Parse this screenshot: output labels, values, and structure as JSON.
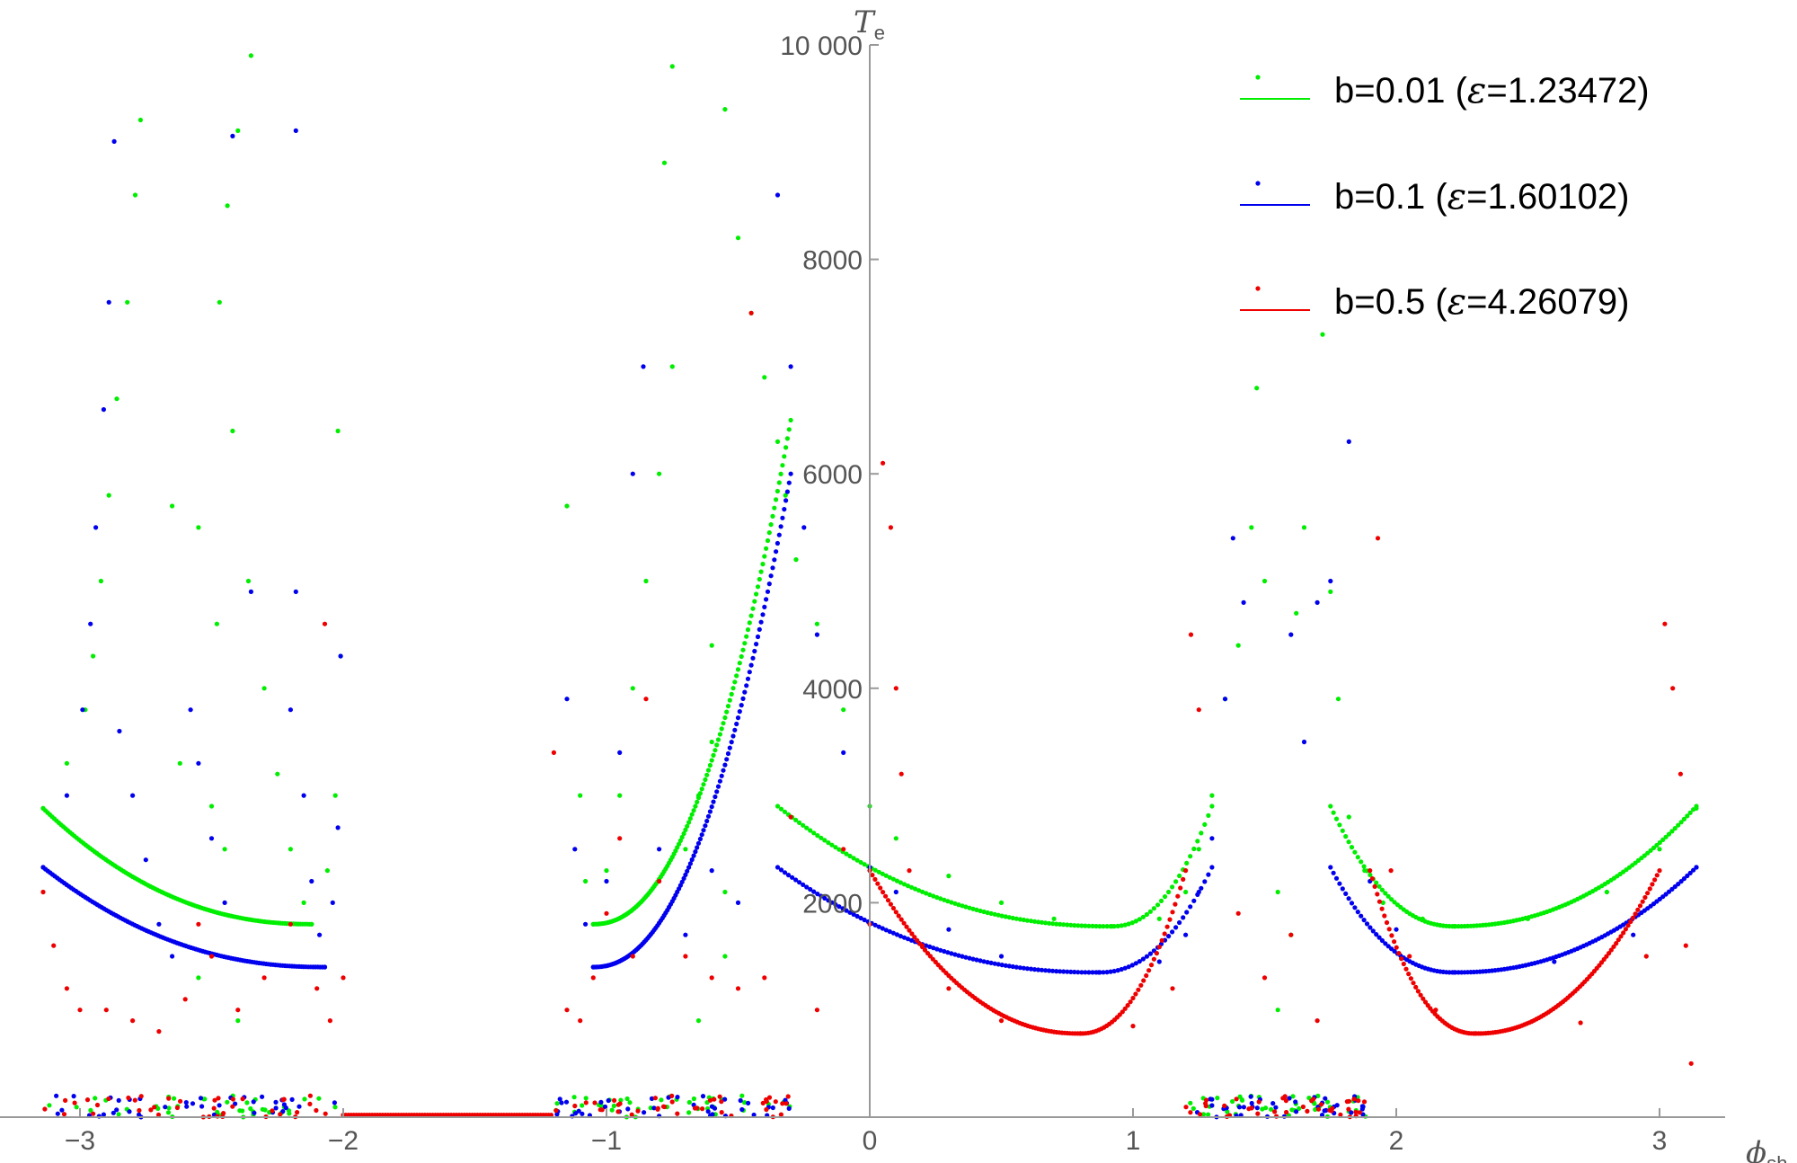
{
  "chart_data": {
    "type": "scatter",
    "xlabel": "ϕ",
    "xlabel_sub": "sh",
    "ylabel": "T",
    "ylabel_sub": "e",
    "xlim": [
      -3.1416,
      3.1416
    ],
    "ylim": [
      0,
      10000
    ],
    "x_ticks": [
      -3,
      -2,
      -1,
      0,
      1,
      2,
      3
    ],
    "x_tick_labels": [
      "−3",
      "−2",
      "−1",
      "0",
      "1",
      "2",
      "3"
    ],
    "y_ticks": [
      2000,
      4000,
      6000,
      8000,
      10000
    ],
    "y_tick_labels": [
      "2000",
      "4000",
      "6000",
      "8000",
      "10 000"
    ],
    "grid": false,
    "legend_position": "top-right",
    "series": [
      {
        "name": "b=0.01",
        "eps_label": "1.23472",
        "color": "#00ee00",
        "regular_segments": [
          {
            "x0": -3.14,
            "x1": -2.12,
            "vertex": -2.12,
            "min": 1800,
            "edge": 2880,
            "left_wall": -3.14,
            "right_wall": -2.12
          },
          {
            "x0": -1.05,
            "x1": -0.3,
            "vertex": -1.05,
            "min": 1800,
            "edge": 6500
          },
          {
            "x0": -0.35,
            "x1": 1.3,
            "vertex": 0.92,
            "min": 1780,
            "edge": 2900
          },
          {
            "x0": 1.75,
            "x1": 3.14,
            "vertex": 2.22,
            "min": 1780,
            "edge": 2900
          }
        ],
        "sample_points": [
          [
            -3.14,
            2880
          ],
          [
            -3.05,
            3300
          ],
          [
            -2.98,
            3800
          ],
          [
            -2.95,
            4300
          ],
          [
            -2.92,
            5000
          ],
          [
            -2.89,
            5800
          ],
          [
            -2.86,
            6700
          ],
          [
            -2.82,
            7600
          ],
          [
            -2.79,
            8600
          ],
          [
            -2.77,
            9300
          ],
          [
            -2.35,
            9900
          ],
          [
            -2.4,
            9200
          ],
          [
            -2.44,
            8500
          ],
          [
            -2.47,
            7600
          ],
          [
            -2.42,
            6400
          ],
          [
            -2.36,
            5000
          ],
          [
            -2.3,
            4000
          ],
          [
            -2.25,
            3200
          ],
          [
            -2.2,
            2500
          ],
          [
            -2.15,
            2000
          ],
          [
            -2.12,
            1800
          ],
          [
            -2.06,
            2300
          ],
          [
            -2.03,
            3000
          ],
          [
            -2.01,
            4300
          ],
          [
            -2.02,
            6400
          ],
          [
            -2.65,
            5700
          ],
          [
            -2.55,
            5500
          ],
          [
            -2.48,
            4600
          ],
          [
            -2.62,
            3300
          ],
          [
            -2.5,
            2900
          ],
          [
            -2.45,
            2500
          ],
          [
            -2.6,
            1600
          ],
          [
            -2.55,
            1300
          ],
          [
            -2.4,
            900
          ],
          [
            -1.15,
            5700
          ],
          [
            -1.1,
            3000
          ],
          [
            -1.08,
            2200
          ],
          [
            -1.05,
            1800
          ],
          [
            -1.0,
            2300
          ],
          [
            -0.95,
            3000
          ],
          [
            -0.9,
            4000
          ],
          [
            -0.85,
            5000
          ],
          [
            -0.8,
            6000
          ],
          [
            -0.75,
            7000
          ],
          [
            -0.78,
            8900
          ],
          [
            -0.75,
            9800
          ],
          [
            -0.55,
            9400
          ],
          [
            -0.5,
            8200
          ],
          [
            -0.45,
            7500
          ],
          [
            -0.4,
            6900
          ],
          [
            -0.35,
            6300
          ],
          [
            -0.32,
            5800
          ],
          [
            -0.28,
            5200
          ],
          [
            -0.2,
            4600
          ],
          [
            -0.1,
            3800
          ],
          [
            0.0,
            2900
          ],
          [
            0.1,
            2600
          ],
          [
            0.3,
            2250
          ],
          [
            0.5,
            2000
          ],
          [
            0.7,
            1850
          ],
          [
            0.92,
            1780
          ],
          [
            1.1,
            1850
          ],
          [
            1.2,
            2100
          ],
          [
            1.25,
            2500
          ],
          [
            1.3,
            3000
          ],
          [
            1.35,
            3900
          ],
          [
            1.4,
            4400
          ],
          [
            1.45,
            5500
          ],
          [
            1.47,
            6800
          ],
          [
            1.5,
            5000
          ],
          [
            -0.6,
            4400
          ],
          [
            -0.6,
            3500
          ],
          [
            -0.65,
            3000
          ],
          [
            -0.7,
            2500
          ],
          [
            -0.55,
            2100
          ],
          [
            -0.55,
            1500
          ],
          [
            -0.65,
            900
          ],
          [
            1.55,
            2100
          ],
          [
            1.6,
            1700
          ],
          [
            1.55,
            1000
          ],
          [
            1.62,
            4700
          ],
          [
            1.65,
            5500
          ],
          [
            1.72,
            7300
          ],
          [
            1.75,
            4900
          ],
          [
            1.78,
            3900
          ],
          [
            1.82,
            2800
          ],
          [
            1.88,
            2300
          ],
          [
            1.95,
            2000
          ],
          [
            2.1,
            1850
          ],
          [
            2.22,
            1780
          ],
          [
            2.5,
            1850
          ],
          [
            2.8,
            2100
          ],
          [
            3.0,
            2500
          ],
          [
            3.14,
            2880
          ]
        ]
      },
      {
        "name": "b=0.1",
        "eps_label": "1.60102",
        "color": "#0000ee",
        "regular_segments": [
          {
            "x0": -3.14,
            "x1": -2.07,
            "vertex": -2.07,
            "min": 1400,
            "edge": 2330
          },
          {
            "x0": -1.05,
            "x1": -0.3,
            "vertex": -1.05,
            "min": 1400,
            "edge": 6000
          },
          {
            "x0": -0.35,
            "x1": 1.3,
            "vertex": 0.87,
            "min": 1350,
            "edge": 2330
          },
          {
            "x0": 1.75,
            "x1": 3.14,
            "vertex": 2.22,
            "min": 1350,
            "edge": 2330
          }
        ],
        "sample_points": [
          [
            -3.14,
            2330
          ],
          [
            -3.05,
            3000
          ],
          [
            -2.99,
            3800
          ],
          [
            -2.96,
            4600
          ],
          [
            -2.94,
            5500
          ],
          [
            -2.91,
            6600
          ],
          [
            -2.89,
            7600
          ],
          [
            -2.87,
            9100
          ],
          [
            -2.42,
            9150
          ],
          [
            -2.18,
            9200
          ],
          [
            -2.18,
            4900
          ],
          [
            -2.2,
            3800
          ],
          [
            -2.15,
            3000
          ],
          [
            -2.12,
            2200
          ],
          [
            -2.09,
            1700
          ],
          [
            -2.07,
            1400
          ],
          [
            -2.04,
            2000
          ],
          [
            -2.02,
            2700
          ],
          [
            -2.01,
            4300
          ],
          [
            -2.85,
            3600
          ],
          [
            -2.8,
            3000
          ],
          [
            -2.75,
            2400
          ],
          [
            -2.7,
            1800
          ],
          [
            -2.65,
            1500
          ],
          [
            -2.58,
            3800
          ],
          [
            -2.55,
            3300
          ],
          [
            -2.5,
            2600
          ],
          [
            -2.45,
            2000
          ],
          [
            -2.35,
            4900
          ],
          [
            -1.15,
            3900
          ],
          [
            -1.12,
            2500
          ],
          [
            -1.08,
            1800
          ],
          [
            -1.05,
            1400
          ],
          [
            -1.0,
            2200
          ],
          [
            -0.95,
            3400
          ],
          [
            -0.9,
            6000
          ],
          [
            -0.86,
            7000
          ],
          [
            -0.8,
            2500
          ],
          [
            -0.7,
            1700
          ],
          [
            -0.6,
            2300
          ],
          [
            -0.5,
            2000
          ],
          [
            -0.35,
            8600
          ],
          [
            -0.3,
            7000
          ],
          [
            -0.25,
            5500
          ],
          [
            -0.2,
            4500
          ],
          [
            -0.1,
            3400
          ],
          [
            0.0,
            2330
          ],
          [
            0.1,
            2100
          ],
          [
            0.3,
            1750
          ],
          [
            0.5,
            1500
          ],
          [
            0.87,
            1350
          ],
          [
            1.1,
            1450
          ],
          [
            1.2,
            1700
          ],
          [
            1.25,
            2100
          ],
          [
            1.3,
            2600
          ],
          [
            1.35,
            3900
          ],
          [
            1.38,
            5400
          ],
          [
            1.42,
            4800
          ],
          [
            1.6,
            4500
          ],
          [
            1.65,
            3500
          ],
          [
            1.7,
            4800
          ],
          [
            1.75,
            5000
          ],
          [
            1.82,
            6300
          ],
          [
            1.9,
            2200
          ],
          [
            2.0,
            1750
          ],
          [
            2.22,
            1350
          ],
          [
            2.6,
            1450
          ],
          [
            2.9,
            1700
          ],
          [
            3.14,
            2330
          ]
        ]
      },
      {
        "name": "b=0.5",
        "eps_label": "4.26079",
        "color": "#ee0000",
        "regular_segments": [
          {
            "x0": 0.0,
            "x1": 1.2,
            "vertex": 0.8,
            "min": 780,
            "edge": 2300
          },
          {
            "x0": 1.9,
            "x1": 3.0,
            "vertex": 2.3,
            "min": 780,
            "edge": 2300
          }
        ],
        "sample_points": [
          [
            -3.14,
            2100
          ],
          [
            -3.1,
            1600
          ],
          [
            -3.05,
            1200
          ],
          [
            -3.0,
            1000
          ],
          [
            -2.9,
            1000
          ],
          [
            -2.8,
            900
          ],
          [
            -2.7,
            800
          ],
          [
            -2.6,
            1100
          ],
          [
            -2.55,
            1800
          ],
          [
            -2.5,
            1500
          ],
          [
            -2.4,
            1000
          ],
          [
            -2.3,
            1300
          ],
          [
            -2.2,
            1800
          ],
          [
            -2.1,
            1200
          ],
          [
            -2.05,
            900
          ],
          [
            -2.0,
            1300
          ],
          [
            -2.07,
            4600
          ],
          [
            -1.2,
            3400
          ],
          [
            -1.15,
            1000
          ],
          [
            -1.1,
            900
          ],
          [
            -1.05,
            1300
          ],
          [
            -1.0,
            1900
          ],
          [
            -0.95,
            2600
          ],
          [
            -0.9,
            1500
          ],
          [
            -0.85,
            3900
          ],
          [
            -0.8,
            2200
          ],
          [
            -0.7,
            1500
          ],
          [
            -0.6,
            1300
          ],
          [
            -0.5,
            1200
          ],
          [
            -0.45,
            7500
          ],
          [
            -0.4,
            1300
          ],
          [
            -0.3,
            2800
          ],
          [
            -0.2,
            1000
          ],
          [
            -0.1,
            2500
          ],
          [
            0.0,
            1800
          ],
          [
            0.05,
            6100
          ],
          [
            0.08,
            5500
          ],
          [
            0.1,
            4000
          ],
          [
            0.12,
            3200
          ],
          [
            0.15,
            2300
          ],
          [
            0.2,
            1600
          ],
          [
            0.3,
            1200
          ],
          [
            0.5,
            900
          ],
          [
            0.8,
            780
          ],
          [
            1.0,
            850
          ],
          [
            1.15,
            1200
          ],
          [
            1.22,
            4500
          ],
          [
            1.25,
            3800
          ],
          [
            1.4,
            1900
          ],
          [
            1.5,
            1300
          ],
          [
            1.6,
            1700
          ],
          [
            1.7,
            900
          ],
          [
            1.93,
            5400
          ],
          [
            1.98,
            2300
          ],
          [
            2.05,
            1500
          ],
          [
            2.15,
            1000
          ],
          [
            2.3,
            780
          ],
          [
            2.7,
            880
          ],
          [
            2.95,
            1500
          ],
          [
            3.02,
            4600
          ],
          [
            3.05,
            4000
          ],
          [
            3.08,
            3200
          ],
          [
            3.1,
            1600
          ],
          [
            3.12,
            500
          ]
        ]
      }
    ]
  }
}
